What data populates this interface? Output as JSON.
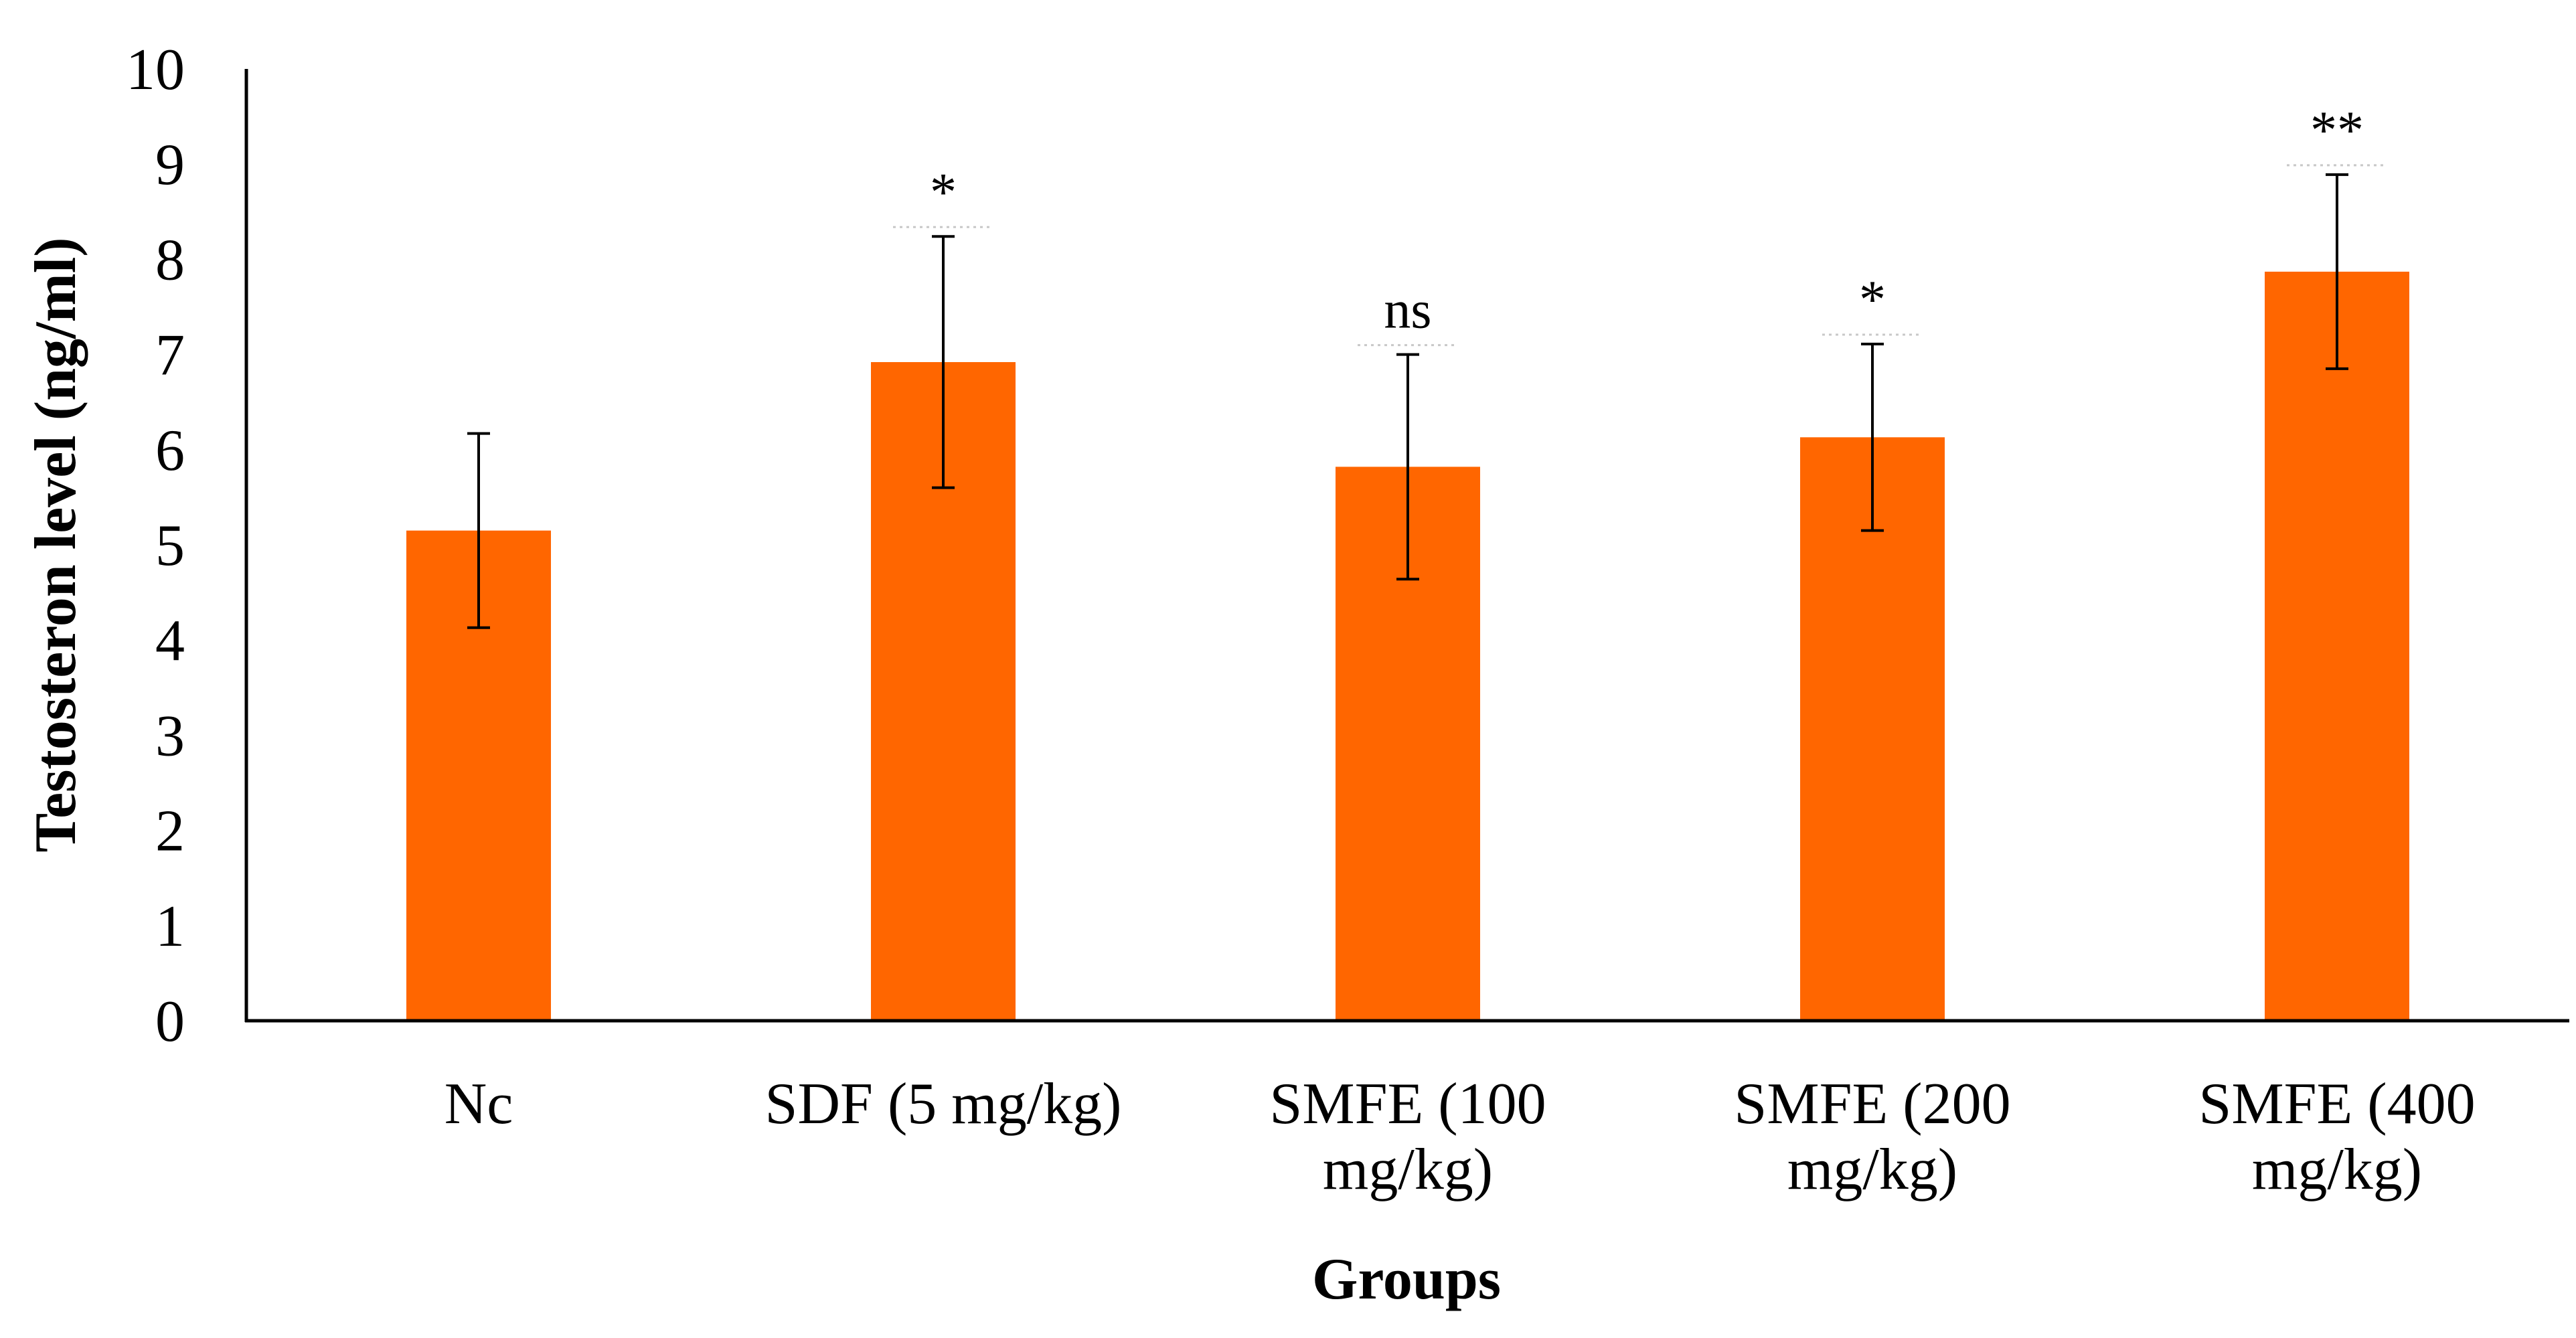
{
  "chart_data": {
    "type": "bar",
    "title": "",
    "xlabel": "Groups",
    "ylabel": "Testosteron level (ng/ml)",
    "ylim": [
      0,
      10
    ],
    "yticks": [
      "0",
      "1",
      "2",
      "3",
      "4",
      "5",
      "6",
      "7",
      "8",
      "9",
      "10"
    ],
    "categories": [
      [
        "Nc"
      ],
      [
        "SDF (5 mg/kg)"
      ],
      [
        "SMFE (100",
        "mg/kg)"
      ],
      [
        "SMFE (200",
        "mg/kg)"
      ],
      [
        "SMFE (400",
        "mg/kg)"
      ]
    ],
    "values": [
      5.15,
      6.92,
      5.82,
      6.13,
      7.87
    ],
    "errors": [
      1.02,
      1.32,
      1.18,
      0.98,
      1.02
    ],
    "significance": [
      "",
      "*",
      "ns",
      "*",
      "**"
    ],
    "bar_color": "#ff6600",
    "grid": false,
    "legend": "none"
  }
}
